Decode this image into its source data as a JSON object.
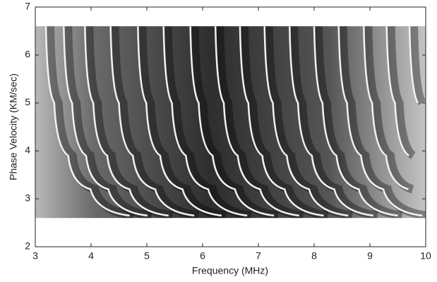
{
  "chart_data": {
    "type": "image",
    "xlabel": "Frequency (MHz)",
    "ylabel": "Phase Velocity (KM/sec)",
    "xlim": [
      3,
      10
    ],
    "ylim": [
      2,
      7
    ],
    "xticks": [
      3,
      4,
      5,
      6,
      7,
      8,
      9,
      10
    ],
    "yticks": [
      2,
      3,
      4,
      5,
      6,
      7
    ],
    "image_extent": {
      "x": [
        3,
        10
      ],
      "y": [
        2.6,
        6.6
      ]
    },
    "curve_color": "#f2f2f2",
    "curves": [
      {
        "x": [
          3.19,
          3.34,
          3.59,
          3.99,
          4.69
        ],
        "y": [
          6.6,
          5.0,
          3.9,
          3.2,
          2.65
        ]
      },
      {
        "x": [
          3.51,
          3.66,
          3.91,
          4.31,
          5.01
        ],
        "y": [
          6.6,
          5.0,
          3.9,
          3.2,
          2.65
        ]
      },
      {
        "x": [
          3.89,
          4.04,
          4.29,
          4.69,
          5.39
        ],
        "y": [
          6.6,
          5.0,
          3.9,
          3.2,
          2.65
        ]
      },
      {
        "x": [
          4.35,
          4.5,
          4.75,
          5.15,
          5.85
        ],
        "y": [
          6.6,
          5.0,
          3.9,
          3.2,
          2.65
        ]
      },
      {
        "x": [
          4.84,
          4.99,
          5.24,
          5.64,
          6.34
        ],
        "y": [
          6.6,
          5.0,
          3.9,
          3.2,
          2.65
        ]
      },
      {
        "x": [
          5.3,
          5.45,
          5.7,
          6.1,
          6.8
        ],
        "y": [
          6.6,
          5.0,
          3.9,
          3.2,
          2.65
        ]
      },
      {
        "x": [
          5.78,
          5.93,
          6.18,
          6.58,
          7.28
        ],
        "y": [
          6.6,
          5.0,
          3.9,
          3.2,
          2.65
        ]
      },
      {
        "x": [
          6.23,
          6.38,
          6.63,
          7.03,
          7.73
        ],
        "y": [
          6.6,
          5.0,
          3.9,
          3.2,
          2.65
        ]
      },
      {
        "x": [
          6.67,
          6.82,
          7.07,
          7.47,
          8.17
        ],
        "y": [
          6.6,
          5.0,
          3.9,
          3.2,
          2.65
        ]
      },
      {
        "x": [
          7.11,
          7.26,
          7.51,
          7.91,
          8.61
        ],
        "y": [
          6.6,
          5.0,
          3.9,
          3.2,
          2.65
        ]
      },
      {
        "x": [
          7.56,
          7.71,
          7.96,
          8.36,
          9.06
        ],
        "y": [
          6.6,
          5.0,
          3.9,
          3.2,
          2.65
        ]
      },
      {
        "x": [
          8.0,
          8.15,
          8.4,
          8.8,
          9.5
        ],
        "y": [
          6.6,
          5.0,
          3.9,
          3.2,
          2.65
        ]
      },
      {
        "x": [
          8.44,
          8.59,
          8.84,
          9.24,
          9.94
        ],
        "y": [
          6.6,
          5.0,
          3.9,
          3.2,
          2.65
        ]
      },
      {
        "x": [
          8.89,
          9.04,
          9.29,
          9.69
        ],
        "y": [
          6.6,
          5.0,
          3.9,
          3.2
        ]
      },
      {
        "x": [
          9.3,
          9.45,
          9.7
        ],
        "y": [
          6.6,
          5.0,
          3.9
        ]
      },
      {
        "x": [
          9.71,
          9.86
        ],
        "y": [
          6.6,
          5.0
        ]
      }
    ]
  }
}
